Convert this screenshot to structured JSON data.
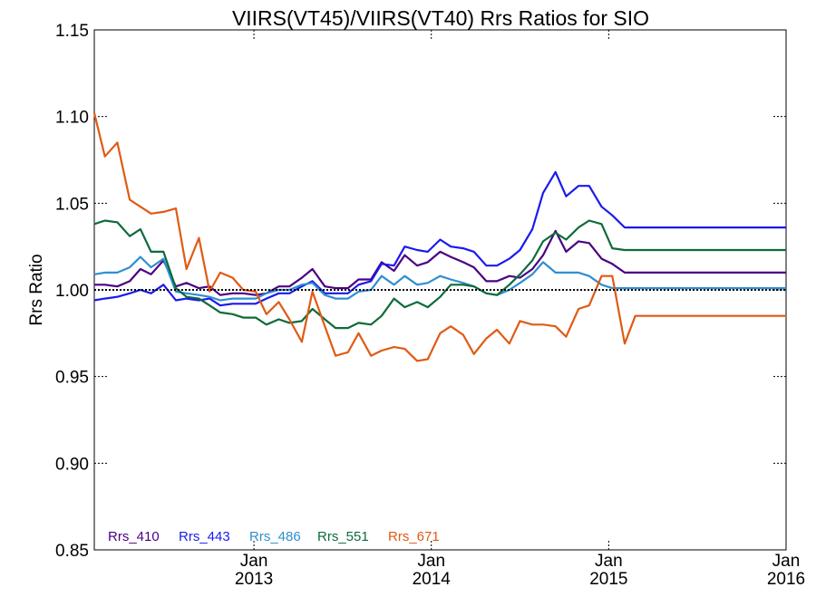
{
  "chart_data": {
    "type": "line",
    "title": "VIIRS(VT45)/VIIRS(VT40)  Rrs Ratios for SIO",
    "ylabel": "Rrs Ratio",
    "xlabel": "",
    "ylim": [
      0.85,
      1.15
    ],
    "xlim": [
      2012.1,
      2016.0
    ],
    "yticks": [
      {
        "value": 0.85,
        "label": "0.85"
      },
      {
        "value": 0.9,
        "label": "0.90"
      },
      {
        "value": 0.95,
        "label": "0.95"
      },
      {
        "value": 1.0,
        "label": "1.00"
      },
      {
        "value": 1.05,
        "label": "1.05"
      },
      {
        "value": 1.1,
        "label": "1.10"
      },
      {
        "value": 1.15,
        "label": "1.15"
      }
    ],
    "xticks": [
      {
        "value": 2013,
        "month": "Jan",
        "year": "2013"
      },
      {
        "value": 2014,
        "month": "Jan",
        "year": "2014"
      },
      {
        "value": 2015,
        "month": "Jan",
        "year": "2015"
      },
      {
        "value": 2016,
        "month": "Jan",
        "year": "2016"
      }
    ],
    "reference_line": 1.0,
    "legend_position": "bottom-left",
    "x": [
      2012.1,
      2012.16,
      2012.23,
      2012.3,
      2012.36,
      2012.42,
      2012.49,
      2012.56,
      2012.62,
      2012.69,
      2012.75,
      2012.81,
      2012.88,
      2012.94,
      2013.01,
      2013.07,
      2013.14,
      2013.2,
      2013.27,
      2013.33,
      2013.4,
      2013.46,
      2013.53,
      2013.59,
      2013.66,
      2013.72,
      2013.79,
      2013.85,
      2013.92,
      2013.98,
      2014.05,
      2014.11,
      2014.18,
      2014.24,
      2014.31,
      2014.37,
      2014.44,
      2014.5,
      2014.57,
      2014.63,
      2014.7,
      2014.76,
      2014.83,
      2014.89,
      2014.96,
      2015.02,
      2015.09,
      2015.15,
      2015.22,
      2015.28,
      2015.35,
      2015.41,
      2015.48,
      2015.54,
      2015.61,
      2015.67,
      2015.74,
      2015.8,
      2015.87,
      2015.93,
      2016.0
    ],
    "series": [
      {
        "name": "Rrs_410",
        "color": "#4b0082",
        "values": [
          1.003,
          1.003,
          1.002,
          1.005,
          1.012,
          1.009,
          1.017,
          1.002,
          1.004,
          1.001,
          1.002,
          0.997,
          0.998,
          0.998,
          0.997,
          0.998,
          1.002,
          1.002,
          1.007,
          1.012,
          1.002,
          1.001,
          1.001,
          1.006,
          1.006,
          1.016,
          1.011,
          1.02,
          1.014,
          1.016,
          1.022,
          1.019,
          1.016,
          1.013,
          1.005,
          1.005,
          1.008,
          1.007,
          1.012,
          1.02,
          1.034,
          1.022,
          1.028,
          1.027,
          1.018,
          1.015,
          1.01,
          1.01,
          1.01,
          1.01,
          1.01,
          1.01,
          1.01,
          1.01,
          1.01,
          1.01,
          1.01,
          1.01,
          1.01,
          1.01,
          1.01
        ]
      },
      {
        "name": "Rrs_443",
        "color": "#1a1aee",
        "values": [
          0.994,
          0.995,
          0.996,
          0.998,
          1.0,
          0.998,
          1.003,
          0.994,
          0.995,
          0.994,
          0.995,
          0.991,
          0.992,
          0.992,
          0.992,
          0.995,
          0.998,
          0.998,
          1.002,
          1.005,
          0.998,
          0.998,
          0.998,
          1.003,
          1.005,
          1.015,
          1.014,
          1.025,
          1.023,
          1.022,
          1.029,
          1.025,
          1.024,
          1.022,
          1.014,
          1.014,
          1.018,
          1.023,
          1.035,
          1.056,
          1.068,
          1.054,
          1.06,
          1.06,
          1.048,
          1.043,
          1.036,
          1.036,
          1.036,
          1.036,
          1.036,
          1.036,
          1.036,
          1.036,
          1.036,
          1.036,
          1.036,
          1.036,
          1.036,
          1.036,
          1.036
        ]
      },
      {
        "name": "Rrs_486",
        "color": "#2f8fcf",
        "values": [
          1.009,
          1.01,
          1.01,
          1.013,
          1.019,
          1.013,
          1.018,
          0.999,
          0.998,
          0.997,
          0.996,
          0.994,
          0.995,
          0.995,
          0.995,
          0.998,
          1.0,
          1.0,
          1.003,
          1.004,
          0.997,
          0.995,
          0.995,
          0.999,
          1.0,
          1.008,
          1.003,
          1.008,
          1.003,
          1.004,
          1.008,
          1.006,
          1.004,
          1.002,
          0.998,
          0.997,
          1.0,
          1.004,
          1.009,
          1.016,
          1.01,
          1.01,
          1.01,
          1.008,
          1.003,
          1.001,
          1.001,
          1.001,
          1.001,
          1.001,
          1.001,
          1.001,
          1.001,
          1.001,
          1.001,
          1.001,
          1.001,
          1.001,
          1.001,
          1.001,
          1.001
        ]
      },
      {
        "name": "Rrs_551",
        "color": "#0d6b3a",
        "values": [
          1.038,
          1.04,
          1.039,
          1.031,
          1.035,
          1.022,
          1.022,
          1.001,
          0.996,
          0.995,
          0.991,
          0.987,
          0.986,
          0.984,
          0.984,
          0.98,
          0.983,
          0.981,
          0.982,
          0.989,
          0.983,
          0.978,
          0.978,
          0.981,
          0.98,
          0.985,
          0.995,
          0.99,
          0.993,
          0.99,
          0.996,
          1.003,
          1.003,
          1.002,
          0.998,
          0.997,
          1.003,
          1.009,
          1.017,
          1.028,
          1.033,
          1.029,
          1.036,
          1.04,
          1.038,
          1.024,
          1.023,
          1.023,
          1.023,
          1.023,
          1.023,
          1.023,
          1.023,
          1.023,
          1.023,
          1.023,
          1.023,
          1.023,
          1.023,
          1.023,
          1.023
        ]
      },
      {
        "name": "Rrs_671",
        "color": "#e05a14",
        "values": [
          1.102,
          1.077,
          1.085,
          1.052,
          1.048,
          1.044,
          1.045,
          1.047,
          1.012,
          1.03,
          0.999,
          1.01,
          1.007,
          1.0,
          0.999,
          0.986,
          0.993,
          0.983,
          0.97,
          0.999,
          0.979,
          0.962,
          0.964,
          0.975,
          0.962,
          0.965,
          0.967,
          0.966,
          0.959,
          0.96,
          0.975,
          0.979,
          0.974,
          0.963,
          0.972,
          0.977,
          0.969,
          0.982,
          0.98,
          0.98,
          0.979,
          0.973,
          0.989,
          0.991,
          1.008,
          1.008,
          0.969,
          0.985,
          0.985,
          0.985,
          0.985,
          0.985,
          0.985,
          0.985,
          0.985,
          0.985,
          0.985,
          0.985,
          0.985,
          0.985,
          0.985
        ]
      }
    ]
  }
}
